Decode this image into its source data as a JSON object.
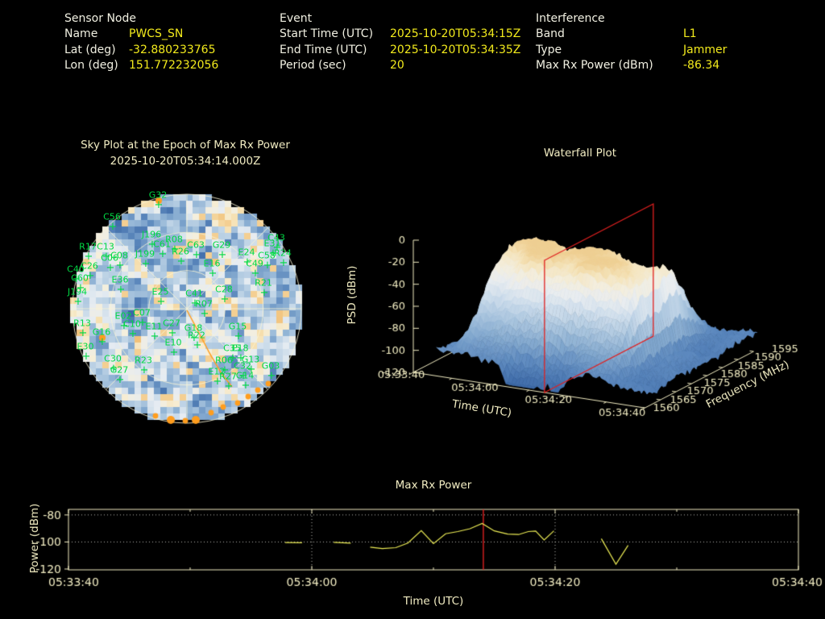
{
  "header": {
    "columns": [
      {
        "title": "Sensor Node",
        "fields": [
          [
            "Name",
            "PWCS_SN"
          ],
          [
            "Lat (deg)",
            "-32.880233765"
          ],
          [
            "Lon (deg)",
            "151.772232056"
          ]
        ]
      },
      {
        "title": "Event",
        "fields": [
          [
            "Start Time (UTC)",
            "2025-10-20T05:34:15Z"
          ],
          [
            "End Time (UTC)",
            "2025-10-20T05:34:35Z"
          ],
          [
            "Period (sec)",
            "20"
          ]
        ]
      },
      {
        "title": "Interference",
        "fields": [
          [
            "Band",
            "L1"
          ],
          [
            "Type",
            "Jammer"
          ],
          [
            "Max Rx Power (dBm)",
            "-86.34"
          ]
        ]
      }
    ]
  },
  "chart_data": [
    {
      "id": "sky_plot",
      "type": "heatmap",
      "projection": "polar",
      "title": "Sky Plot at the Epoch of Max Rx Power",
      "subtitle": "2025-10-20T05:34:14.000Z",
      "grid": {
        "rings": 3,
        "spoke_step_deg": 45
      },
      "satellites": [
        [
          "G32",
          -35,
          -128,
          1
        ],
        [
          "C56",
          -92,
          -101,
          0
        ],
        [
          "J196",
          -43,
          -79,
          0
        ],
        [
          "R08",
          -15,
          -73,
          0
        ],
        [
          "R26",
          -7,
          -58,
          0
        ],
        [
          "R17",
          -122,
          -64,
          0
        ],
        [
          "C13",
          -100,
          -64,
          0
        ],
        [
          "C08",
          -83,
          -53,
          0
        ],
        [
          "C06",
          -95,
          -50,
          0
        ],
        [
          "J199",
          -51,
          -55,
          0
        ],
        [
          "C40",
          -137,
          -36,
          0
        ],
        [
          "C26",
          -120,
          -40,
          0
        ],
        [
          "C60",
          -132,
          -25,
          0
        ],
        [
          "E36",
          -82,
          -23,
          0
        ],
        [
          "J194",
          -135,
          -8,
          0
        ],
        [
          "E25",
          -32,
          -8,
          0
        ],
        [
          "C61",
          -30,
          -67,
          0
        ],
        [
          "C63",
          12,
          -66,
          0
        ],
        [
          "G29",
          44,
          -66,
          0
        ],
        [
          "E24",
          75,
          -57,
          0
        ],
        [
          "C43",
          112,
          -75,
          0
        ],
        [
          "E31",
          107,
          -68,
          0
        ],
        [
          "R24",
          120,
          -56,
          0
        ],
        [
          "C58",
          100,
          -53,
          0
        ],
        [
          "C49",
          85,
          -43,
          0
        ],
        [
          "E16",
          32,
          -43,
          0
        ],
        [
          "C28",
          47,
          -11,
          0
        ],
        [
          "R21",
          96,
          -19,
          0
        ],
        [
          "C41",
          10,
          -6,
          0
        ],
        [
          "R07",
          22,
          7,
          0
        ],
        [
          "E02",
          -78,
          22,
          0
        ],
        [
          "C07",
          -55,
          18,
          0
        ],
        [
          "C10",
          -67,
          32,
          0
        ],
        [
          "E11",
          -40,
          35,
          0
        ],
        [
          "C27",
          -18,
          31,
          0
        ],
        [
          "R13",
          -129,
          31,
          0
        ],
        [
          "G16",
          -105,
          42,
          1
        ],
        [
          "E30",
          -125,
          60,
          0
        ],
        [
          "E10",
          -16,
          55,
          0
        ],
        [
          "C30",
          -91,
          75,
          0
        ],
        [
          "R23",
          -53,
          77,
          0
        ],
        [
          "G27",
          -83,
          89,
          0
        ],
        [
          "G18",
          9,
          37,
          0
        ],
        [
          "R22",
          13,
          46,
          0
        ],
        [
          "G15",
          64,
          35,
          0
        ],
        [
          "C35",
          57,
          62,
          0
        ],
        [
          "E18",
          67,
          62,
          0
        ],
        [
          "R06",
          47,
          77,
          0
        ],
        [
          "G13",
          80,
          76,
          0
        ],
        [
          "C32",
          70,
          84,
          0
        ],
        [
          "G03",
          105,
          84,
          0
        ],
        [
          "E12",
          38,
          91,
          0
        ],
        [
          "R27",
          52,
          97,
          0
        ],
        [
          "G14",
          73,
          96,
          0
        ]
      ],
      "track_line": [
        [
          0,
          2
        ],
        [
          14,
          28
        ],
        [
          28,
          55
        ],
        [
          42,
          79
        ],
        [
          56,
          97
        ]
      ],
      "track_dots": [
        [
          101,
          93
        ],
        [
          88,
          101
        ],
        [
          76,
          109
        ],
        [
          63,
          117
        ],
        [
          45,
          122
        ],
        [
          30,
          129
        ],
        [
          11,
          138
        ],
        [
          -2,
          139
        ],
        [
          -20,
          138
        ],
        [
          -39,
          133
        ]
      ]
    },
    {
      "id": "waterfall",
      "type": "surface",
      "title": "Waterfall Plot",
      "x": {
        "label": "Time (UTC)",
        "ticks": [
          "05:33:40",
          "05:34:00",
          "05:34:20",
          "05:34:40"
        ],
        "tick_s": [
          0,
          20,
          40,
          60
        ],
        "minor_s": [
          10,
          30,
          50
        ],
        "range_s": [
          0,
          60
        ]
      },
      "y": {
        "label": "Frequency (MHz)",
        "ticks": [
          1560,
          1565,
          1570,
          1575,
          1580,
          1585,
          1590,
          1595
        ],
        "range": [
          1560,
          1595
        ]
      },
      "z": {
        "label": "PSD (dBm)",
        "ticks": [
          0,
          -20,
          -40,
          -60,
          -80,
          -100,
          -120
        ],
        "range": [
          -120,
          0
        ]
      },
      "event": {
        "time_slice_s": 34,
        "slice_color": "#e02020",
        "baseline_psd_dbm": -103,
        "peak_psd_dbm": -22,
        "event_start_s": 8,
        "event_end_s": 52,
        "center_freq_mhz": 1577
      }
    },
    {
      "id": "max_rx_power",
      "type": "line",
      "title": "Max Rx Power",
      "xlabel": "Time (UTC)",
      "ylabel": "Power (dBm)",
      "xticks": [
        "05:33:40",
        "05:34:00",
        "05:34:20",
        "05:34:40"
      ],
      "xtick_s": [
        0,
        20,
        40,
        60
      ],
      "minor_s": [
        10,
        30,
        50
      ],
      "yticks": [
        -80,
        -100,
        -120
      ],
      "ylim": [
        -120.6,
        -75.9
      ],
      "xlim_s": [
        0,
        60
      ],
      "red_line_s": 34.1,
      "grid_y": [
        -80,
        -100
      ],
      "grid_x_s": [
        20,
        40
      ],
      "segments": [
        [
          [
            17.8,
            -100.4
          ],
          [
            19.2,
            -100.6
          ]
        ],
        [
          [
            21.8,
            -100.3
          ],
          [
            23.2,
            -100.9
          ]
        ],
        [
          [
            24.8,
            -103.8
          ],
          [
            25.8,
            -104.9
          ],
          [
            26.9,
            -104.2
          ],
          [
            27.9,
            -100.8
          ],
          [
            29.0,
            -91.6
          ],
          [
            30.0,
            -101.2
          ],
          [
            31.0,
            -93.9
          ],
          [
            32.0,
            -92.3
          ],
          [
            33.0,
            -90.2
          ],
          [
            34.0,
            -86.34
          ],
          [
            35.0,
            -91.8
          ],
          [
            36.1,
            -94.2
          ],
          [
            37.0,
            -94.5
          ],
          [
            37.8,
            -92.3
          ],
          [
            38.4,
            -91.9
          ],
          [
            39.1,
            -98.5
          ],
          [
            39.9,
            -91.8
          ]
        ],
        [
          [
            43.8,
            -97.6
          ],
          [
            45.0,
            -116.5
          ],
          [
            46.0,
            -102.5
          ]
        ]
      ]
    }
  ],
  "colors": {
    "background": "#000000",
    "header_label": "#f1f0e2",
    "value_text": "#f2ea1c",
    "plot_text": "#f1ecc2",
    "grid_line": "rgba(249,245,214,0.85)",
    "dotted_grid": "rgba(235,235,225,0.8)",
    "data_line": "#ecec55",
    "red": "#dd2020",
    "green": "#00d944",
    "orange": "#ff9d1e",
    "sky_stops": [
      [
        0,
        "#3a66a5"
      ],
      [
        0.18,
        "#5d89bd"
      ],
      [
        0.36,
        "#8fb2d4"
      ],
      [
        0.52,
        "#bfd4e6"
      ],
      [
        0.66,
        "#e6ecf2"
      ],
      [
        0.78,
        "#f6efd9"
      ],
      [
        0.88,
        "#f6dfae"
      ],
      [
        1,
        "#f0b96b"
      ]
    ],
    "surface_stops": [
      [
        -120,
        "#3a67a6"
      ],
      [
        -100,
        "#5e8abf"
      ],
      [
        -85,
        "#86abd0"
      ],
      [
        -70,
        "#aec8e0"
      ],
      [
        -57,
        "#cfdeec"
      ],
      [
        -45,
        "#e9edf0"
      ],
      [
        -35,
        "#f4eedd"
      ],
      [
        -27,
        "#f5e4bb"
      ],
      [
        -20,
        "#efcf92"
      ]
    ]
  }
}
